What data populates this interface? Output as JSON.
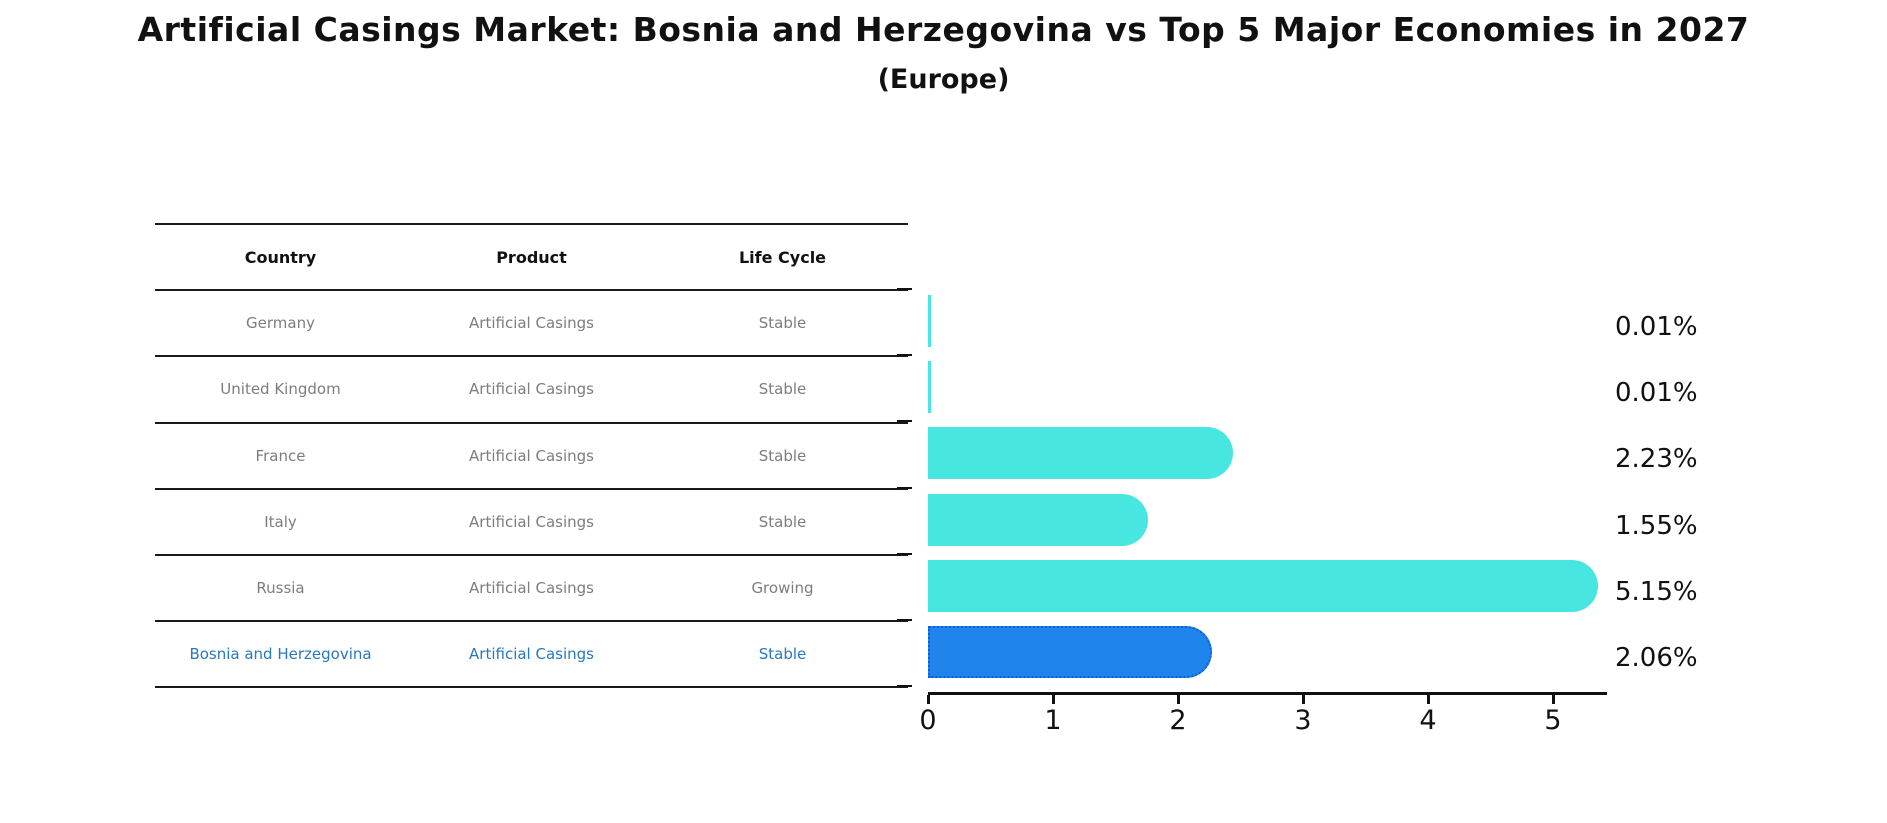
{
  "title": "Artificial Casings Market: Bosnia and Herzegovina vs Top 5 Major Economies in 2027",
  "subtitle": "(Europe)",
  "colors": {
    "bar": "#48e6e0",
    "highlight_bar": "#1f85ec",
    "highlight_bar_border": "#0d5ed8",
    "row_text": "#7d7d7d",
    "highlight_text": "#2878be",
    "axis": "#111111"
  },
  "table": {
    "headers": [
      "Country",
      "Product",
      "Life Cycle"
    ],
    "rows": [
      {
        "country": "Germany",
        "product": "Artificial Casings",
        "life_cycle": "Stable",
        "highlight": false
      },
      {
        "country": "United Kingdom",
        "product": "Artificial Casings",
        "life_cycle": "Stable",
        "highlight": false
      },
      {
        "country": "France",
        "product": "Artificial Casings",
        "life_cycle": "Stable",
        "highlight": false
      },
      {
        "country": "Italy",
        "product": "Artificial Casings",
        "life_cycle": "Stable",
        "highlight": false
      },
      {
        "country": "Russia",
        "product": "Artificial Casings",
        "life_cycle": "Growing",
        "highlight": false
      },
      {
        "country": "Bosnia and Herzegovina",
        "product": "Artificial Casings",
        "life_cycle": "Stable",
        "highlight": true
      }
    ]
  },
  "chart_data": {
    "type": "bar",
    "orientation": "horizontal",
    "title": "Artificial Casings Market: Bosnia and Herzegovina vs Top 5 Major Economies in 2027",
    "subtitle": "(Europe)",
    "categories": [
      "Germany",
      "United Kingdom",
      "France",
      "Italy",
      "Russia",
      "Bosnia and Herzegovina"
    ],
    "values": [
      0.01,
      0.01,
      2.23,
      1.55,
      5.15,
      2.06
    ],
    "labels": [
      "0.01%",
      "0.01%",
      "2.23%",
      "1.55%",
      "5.15%",
      "2.06%"
    ],
    "highlight_index": 5,
    "xtick_labels": [
      "0",
      "1",
      "2",
      "3",
      "4",
      "5"
    ],
    "xticks": [
      0,
      1,
      2,
      3,
      4,
      5
    ],
    "xlim": [
      0,
      5.42
    ],
    "grid": false,
    "legend": false,
    "value_unit": "%"
  }
}
